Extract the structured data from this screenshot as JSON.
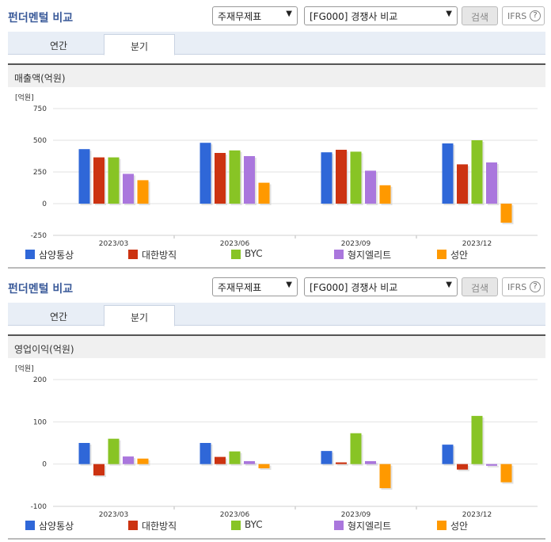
{
  "colors": {
    "series": [
      "#2f67d8",
      "#cc3311",
      "#88c425",
      "#aa77dd",
      "#ff9900"
    ],
    "title": "#3b5b9a"
  },
  "sections": [
    {
      "title": "펀더멘털 비교",
      "select1": "주재무제표",
      "select2": "[FG000] 경쟁사 비교",
      "search_label": "검색",
      "ifrs_label": "IFRS",
      "help_glyph": "?",
      "tabs": [
        "연간",
        "분기"
      ],
      "active_tab": 1,
      "subtitle": "매출액(억원)"
    },
    {
      "title": "펀더멘털 비교",
      "select1": "주재무제표",
      "select2": "[FG000] 경쟁사 비교",
      "search_label": "검색",
      "ifrs_label": "IFRS",
      "help_glyph": "?",
      "tabs": [
        "연간",
        "분기"
      ],
      "active_tab": 1,
      "subtitle": "영업이익(억원)"
    }
  ],
  "chart_data": [
    {
      "type": "bar",
      "unit_label": "[억원]",
      "categories": [
        "2023/03",
        "2023/06",
        "2023/09",
        "2023/12"
      ],
      "yticks": [
        750,
        500,
        250,
        0,
        -250
      ],
      "ylim": [
        -250,
        750
      ],
      "series": [
        {
          "name": "삼양통상",
          "values": [
            430,
            480,
            405,
            475
          ]
        },
        {
          "name": "대한방직",
          "values": [
            365,
            400,
            425,
            310
          ]
        },
        {
          "name": "BYC",
          "values": [
            365,
            420,
            410,
            500
          ]
        },
        {
          "name": "형지엘리트",
          "values": [
            235,
            375,
            260,
            325
          ]
        },
        {
          "name": "성안",
          "values": [
            185,
            165,
            145,
            -150
          ]
        }
      ]
    },
    {
      "type": "bar",
      "unit_label": "[억원]",
      "categories": [
        "2023/03",
        "2023/06",
        "2023/09",
        "2023/12"
      ],
      "yticks": [
        200,
        100,
        0,
        -100
      ],
      "ylim": [
        -100,
        200
      ],
      "series": [
        {
          "name": "삼양통상",
          "values": [
            50,
            50,
            31,
            46
          ]
        },
        {
          "name": "대한방직",
          "values": [
            -27,
            17,
            4,
            -13
          ]
        },
        {
          "name": "BYC",
          "values": [
            60,
            30,
            73,
            114
          ]
        },
        {
          "name": "형지엘리트",
          "values": [
            18,
            7,
            7,
            -4
          ]
        },
        {
          "name": "성안",
          "values": [
            13,
            -10,
            -57,
            -43
          ]
        }
      ]
    }
  ]
}
